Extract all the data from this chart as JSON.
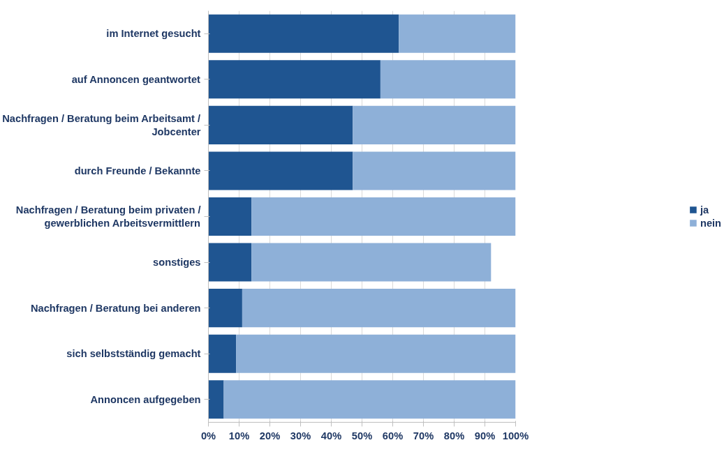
{
  "chart_data": {
    "type": "bar",
    "orientation": "horizontal",
    "stacked": true,
    "categories": [
      "im Internet gesucht",
      "auf Annoncen geantwortet",
      "Nachfragen / Beratung beim Arbeitsamt / Jobcenter",
      "durch Freunde / Bekannte",
      "Nachfragen / Beratung beim privaten / gewerblichen Arbeitsvermittlern",
      "sonstiges",
      "Nachfragen / Beratung bei anderen",
      "sich selbstständig gemacht",
      "Annoncen aufgegeben"
    ],
    "series": [
      {
        "name": "ja",
        "color": "#1f5591",
        "values": [
          62,
          56,
          47,
          47,
          14,
          14,
          11,
          9,
          5
        ]
      },
      {
        "name": "nein",
        "color": "#8eb0d8",
        "values": [
          38,
          44,
          53,
          53,
          86,
          78,
          89,
          91,
          95
        ]
      }
    ],
    "xlim": [
      0,
      100
    ],
    "xticks": [
      {
        "value": 0,
        "label": "0%"
      },
      {
        "value": 10,
        "label": "10%"
      },
      {
        "value": 20,
        "label": "20%"
      },
      {
        "value": 30,
        "label": "30%"
      },
      {
        "value": 40,
        "label": "40%"
      },
      {
        "value": 50,
        "label": "50%"
      },
      {
        "value": 60,
        "label": "60%"
      },
      {
        "value": 70,
        "label": "70%"
      },
      {
        "value": 80,
        "label": "80%"
      },
      {
        "value": 90,
        "label": "90%"
      },
      {
        "value": 100,
        "label": "100%"
      }
    ],
    "grid": "x",
    "legend": "right"
  }
}
